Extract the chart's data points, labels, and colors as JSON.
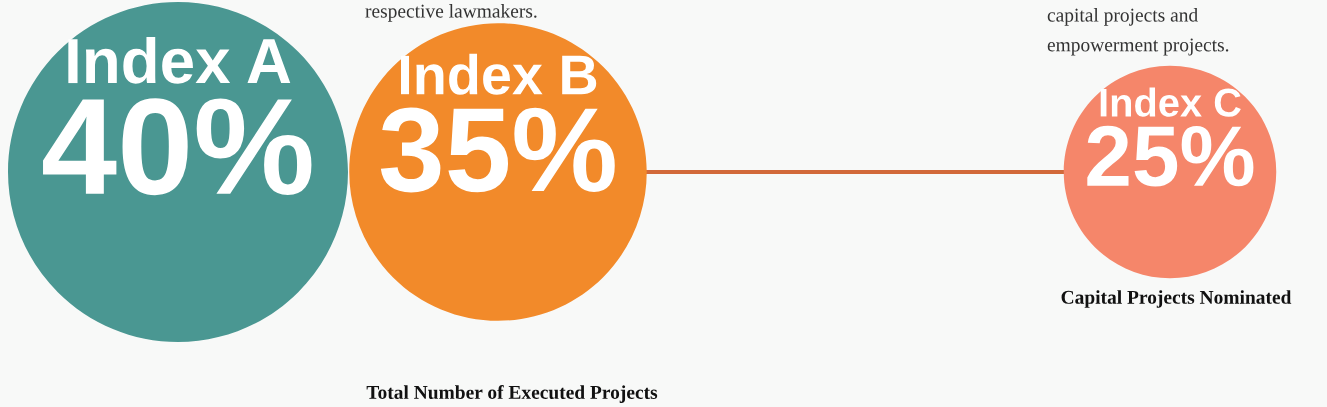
{
  "chart_data": {
    "type": "other",
    "categories": [
      "Index A",
      "Index B",
      "Index C"
    ],
    "values": [
      40,
      35,
      25
    ],
    "value_labels": [
      "40%",
      "35%",
      "25%"
    ],
    "colors": [
      "#4a9792",
      "#f28a2a",
      "#f5866a"
    ],
    "annotations": [
      "respective lawmakers.",
      "capital projects and\nempowerment projects.",
      "Total Number of Executed Projects",
      "Capital Projects Nominated"
    ]
  }
}
